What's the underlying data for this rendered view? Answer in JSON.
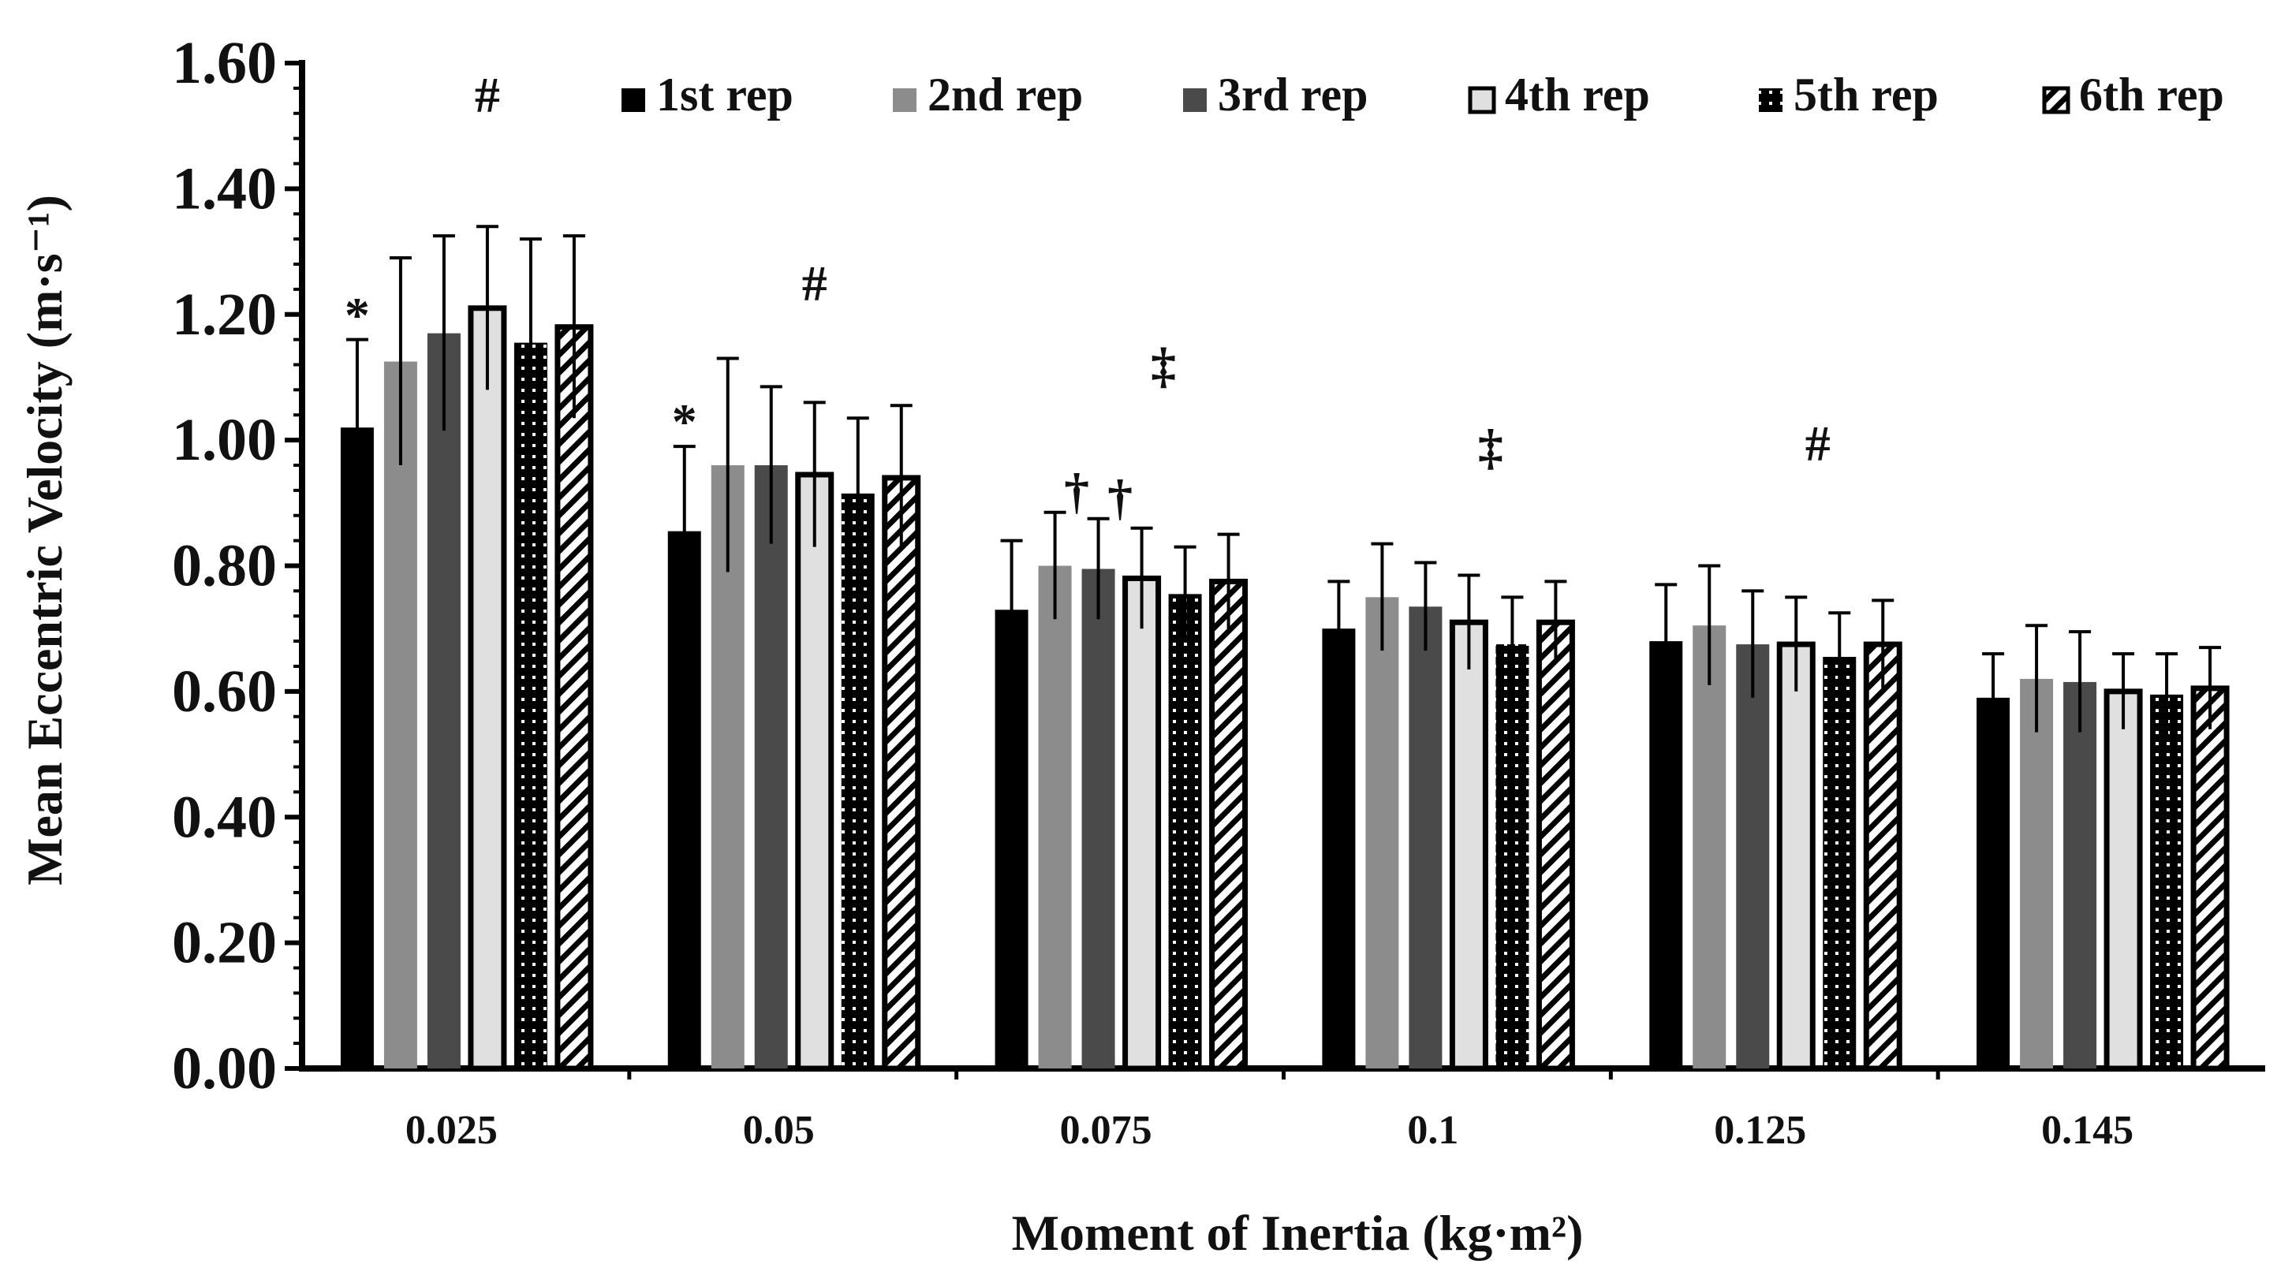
{
  "chart_data": {
    "type": "bar",
    "title": "",
    "xlabel": "Moment of Inertia  (kg·m²)",
    "ylabel": "Mean Eccentric Velocity (m·s⁻¹)",
    "ylim": [
      0,
      1.6
    ],
    "yticks": [
      "0.00",
      "0.20",
      "0.40",
      "0.60",
      "0.80",
      "1.00",
      "1.20",
      "1.40",
      "1.60"
    ],
    "ytick_values": [
      0,
      0.2,
      0.4,
      0.6,
      0.8,
      1.0,
      1.2,
      1.4,
      1.6
    ],
    "categories": [
      "0.025",
      "0.05",
      "0.075",
      "0.1",
      "0.125",
      "0.145"
    ],
    "legend_position": "top",
    "grid": false,
    "series": [
      {
        "name": "1st rep",
        "pattern": "solid-black",
        "values": [
          1.02,
          0.855,
          0.73,
          0.7,
          0.68,
          0.59
        ],
        "errors": [
          0.14,
          0.135,
          0.11,
          0.075,
          0.09,
          0.07
        ]
      },
      {
        "name": "2nd rep",
        "pattern": "solid-gray",
        "values": [
          1.125,
          0.96,
          0.8,
          0.75,
          0.705,
          0.62
        ],
        "errors": [
          0.165,
          0.17,
          0.085,
          0.085,
          0.095,
          0.085
        ]
      },
      {
        "name": "3rd rep",
        "pattern": "solid-dark",
        "values": [
          1.17,
          0.96,
          0.795,
          0.735,
          0.675,
          0.615
        ],
        "errors": [
          0.155,
          0.125,
          0.08,
          0.07,
          0.085,
          0.08
        ]
      },
      {
        "name": "4th rep",
        "pattern": "light-outlined",
        "values": [
          1.21,
          0.945,
          0.78,
          0.71,
          0.675,
          0.6
        ],
        "errors": [
          0.13,
          0.115,
          0.08,
          0.075,
          0.075,
          0.06
        ]
      },
      {
        "name": "5th rep",
        "pattern": "dots",
        "values": [
          1.155,
          0.915,
          0.755,
          0.675,
          0.655,
          0.595
        ],
        "errors": [
          0.165,
          0.12,
          0.075,
          0.075,
          0.07,
          0.065
        ]
      },
      {
        "name": "6th rep",
        "pattern": "diagonal-stripes",
        "values": [
          1.18,
          0.94,
          0.775,
          0.71,
          0.675,
          0.605
        ],
        "errors": [
          0.145,
          0.115,
          0.075,
          0.065,
          0.07,
          0.065
        ]
      }
    ],
    "annotations": [
      {
        "text": "#",
        "category": 0,
        "group_offset": 3,
        "y": 1.55
      },
      {
        "text": "*",
        "category": 0,
        "group_offset": 0,
        "y": 1.2
      },
      {
        "text": "#",
        "category": 1,
        "group_offset": 3,
        "y": 1.25
      },
      {
        "text": "*",
        "category": 1,
        "group_offset": 0,
        "y": 1.03
      },
      {
        "text": "‡",
        "category": 2,
        "group_offset": 3.5,
        "y": 1.12
      },
      {
        "text": "†",
        "category": 2,
        "group_offset": 1.5,
        "y": 0.92
      },
      {
        "text": "†",
        "category": 2,
        "group_offset": 2.5,
        "y": 0.91
      },
      {
        "text": "‡",
        "category": 3,
        "group_offset": 3.5,
        "y": 0.99
      },
      {
        "text": "#",
        "category": 4,
        "group_offset": 3.5,
        "y": 0.995
      }
    ]
  },
  "colors": {
    "black": "#000000",
    "gray": "#8c8c8c",
    "dark": "#4a4a4a",
    "light": "#e0e0e0",
    "white": "#ffffff"
  }
}
